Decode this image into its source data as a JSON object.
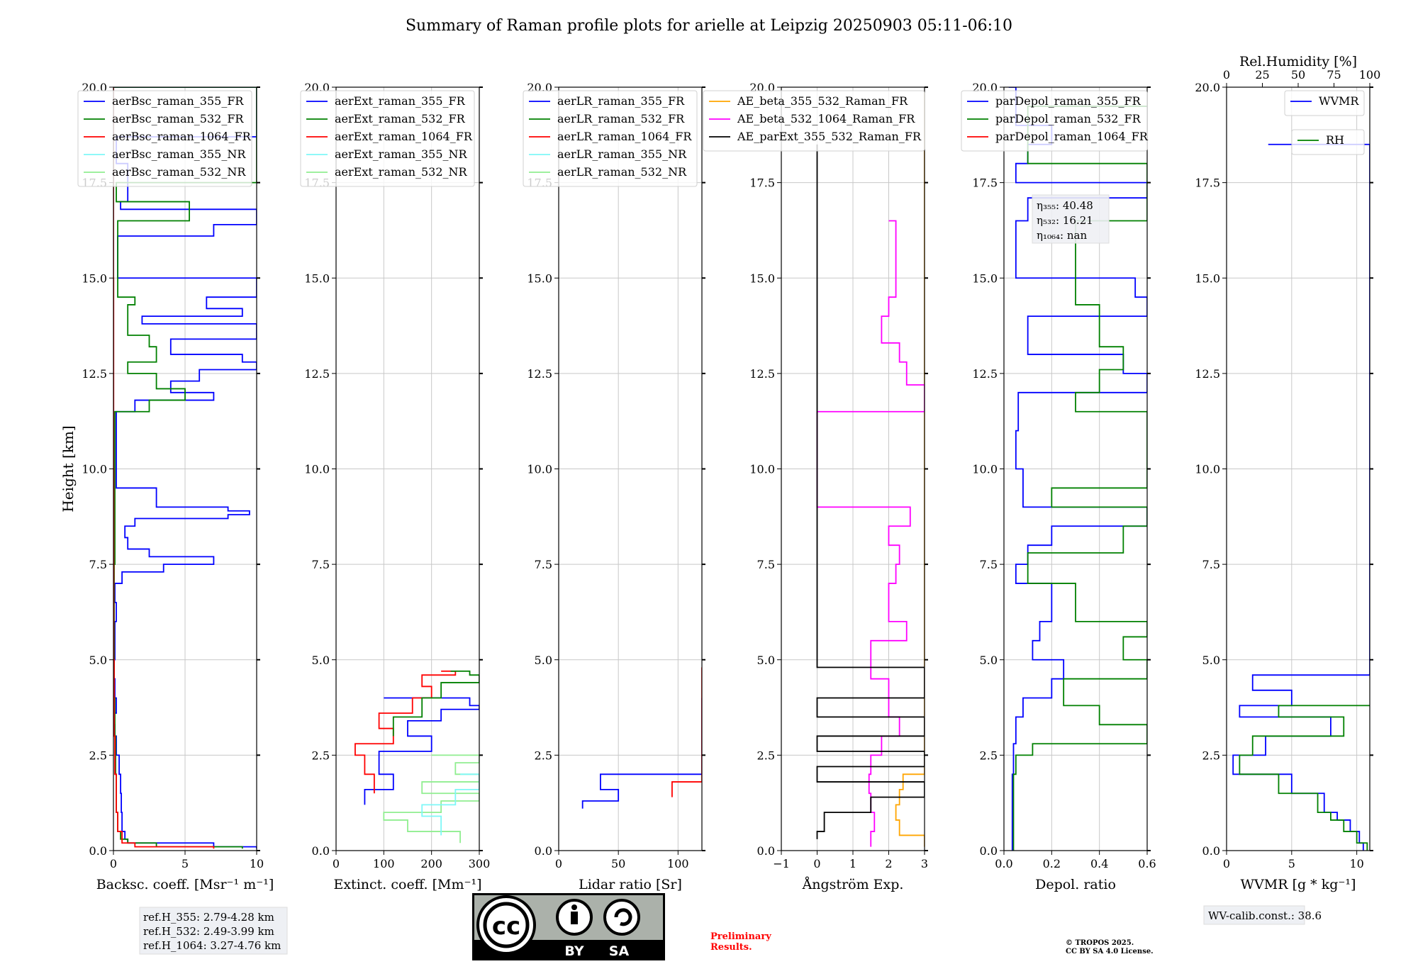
{
  "title": "Summary of Raman profile plots for arielle at Leipzig 20250903 05:11-06:10",
  "colors": {
    "blue": "#0000ff",
    "green": "#008000",
    "red": "#ff0000",
    "cyan": "#7ff7f7",
    "lightgreen": "#90ee90",
    "orange": "#ffa500",
    "magenta": "#ff00ff",
    "black": "#000000",
    "grid": "#c8c8c8",
    "prelim": "#ff0000"
  },
  "chart_data": [
    {
      "id": "bsc",
      "type": "line",
      "xlabel": "Backsc. coeff. [Msr⁻¹ m⁻¹]",
      "ylabel": "Height [km]",
      "xlim": [
        0,
        10
      ],
      "ylim": [
        0,
        20
      ],
      "xticks": [
        0,
        5,
        10
      ],
      "xtick_labels": [
        "0",
        "5",
        "10"
      ],
      "yticks": [
        0,
        2.5,
        5,
        7.5,
        10,
        12.5,
        15,
        17.5,
        20
      ],
      "ytick_labels": [
        "0.0",
        "2.5",
        "5.0",
        "7.5",
        "10.0",
        "12.5",
        "15.0",
        "17.5",
        "20.0"
      ],
      "legend": [
        "aerBsc_raman_355_FR",
        "aerBsc_raman_532_FR",
        "aerBsc_raman_1064_FR",
        "aerBsc_raman_355_NR",
        "aerBsc_raman_532_NR"
      ],
      "legend_colors": [
        "blue",
        "green",
        "red",
        "cyan",
        "lightgreen"
      ],
      "legend_loc": "upper left",
      "series": [
        {
          "color": "blue",
          "y": [
            0.05,
            0.1,
            0.2,
            0.3,
            0.5,
            1.0,
            1.5,
            2.0,
            2.5,
            3.0,
            3.3,
            3.6,
            4.0,
            4.5,
            5.0,
            6.0,
            6.5,
            7.0,
            7.3,
            7.5,
            7.7,
            7.9,
            8.2,
            8.5,
            8.7,
            8.8,
            8.9,
            9.0,
            9.5,
            11.5,
            11.8,
            12.0,
            12.3,
            12.6,
            12.8,
            13.0,
            13.4,
            13.8,
            14.0,
            14.2,
            14.5,
            15.0,
            16.1,
            16.4,
            16.8,
            17.0,
            18.0,
            18.7,
            20.0
          ],
          "x": [
            10,
            7,
            1.0,
            0.8,
            0.6,
            0.55,
            0.5,
            0.4,
            0.2,
            0.1,
            0.05,
            0.2,
            0.1,
            0.05,
            0.1,
            0.2,
            0.1,
            0.6,
            3.5,
            7.0,
            2.5,
            1.0,
            0.8,
            1.5,
            8.0,
            9.5,
            8.0,
            3.0,
            0.2,
            1.5,
            7.0,
            4.0,
            6.0,
            10,
            9,
            4.0,
            10,
            2.0,
            9.0,
            6.5,
            10,
            0.3,
            7.0,
            10,
            0.5,
            1.0,
            0.2,
            10,
            0.0
          ]
        },
        {
          "color": "green",
          "y": [
            0.05,
            0.1,
            0.2,
            0.3,
            0.5,
            1.0,
            2.0,
            3.0,
            4.0,
            5.0,
            7.5,
            8.0,
            11.5,
            11.8,
            12.1,
            12.5,
            12.8,
            13.2,
            13.5,
            14.3,
            14.5,
            16.5,
            17.0,
            17.5,
            20.0
          ],
          "x": [
            9,
            3,
            1.0,
            0.5,
            0.3,
            0.2,
            0.15,
            0.1,
            0.05,
            0.05,
            0.1,
            0.1,
            2.5,
            5.0,
            3.0,
            1.0,
            3.0,
            2.5,
            1.0,
            1.5,
            0.3,
            5.3,
            0.2,
            10,
            0.0
          ]
        },
        {
          "color": "red",
          "y": [
            0.05,
            0.1,
            0.2,
            0.5,
            1.0,
            2.0,
            3.0,
            5.0,
            10.0,
            15.0,
            20.0
          ],
          "x": [
            7,
            1.5,
            0.6,
            0.3,
            0.2,
            0.1,
            0.05,
            0.02,
            0.01,
            0.0,
            0.0
          ]
        }
      ],
      "annotation": [
        "ref.H_355: 2.79-4.28 km",
        "ref.H_532: 2.49-3.99 km",
        "ref.H_1064: 3.27-4.76 km"
      ]
    },
    {
      "id": "ext",
      "type": "line",
      "xlabel": "Extinct. coeff. [Mm⁻¹]",
      "xlim": [
        0,
        300
      ],
      "ylim": [
        0,
        20
      ],
      "xticks": [
        0,
        100,
        200,
        300
      ],
      "xtick_labels": [
        "0",
        "100",
        "200",
        "300"
      ],
      "yticks": [
        0,
        2.5,
        5,
        7.5,
        10,
        12.5,
        15,
        17.5,
        20
      ],
      "ytick_labels": [
        "0.0",
        "2.5",
        "5.0",
        "7.5",
        "10.0",
        "12.5",
        "15.0",
        "17.5",
        "20.0"
      ],
      "legend": [
        "aerExt_raman_355_FR",
        "aerExt_raman_532_FR",
        "aerExt_raman_1064_FR",
        "aerExt_raman_355_NR",
        "aerExt_raman_532_NR"
      ],
      "legend_colors": [
        "blue",
        "green",
        "red",
        "cyan",
        "lightgreen"
      ],
      "legend_loc": "upper left",
      "series": [
        {
          "color": "lightgreen",
          "y": [
            0.2,
            0.5,
            0.8,
            1.0,
            1.3,
            1.5,
            1.8,
            2.0,
            2.3,
            2.5
          ],
          "x": [
            260,
            150,
            100,
            220,
            300,
            180,
            300,
            250,
            300,
            200
          ]
        },
        {
          "color": "cyan",
          "y": [
            0.4,
            0.9,
            1.2,
            1.6,
            2.0
          ],
          "x": [
            220,
            180,
            250,
            300,
            260
          ]
        },
        {
          "color": "blue",
          "y": [
            1.2,
            1.6,
            2.0,
            2.6,
            3.0,
            3.4,
            3.7,
            3.8,
            4.0
          ],
          "x": [
            60,
            120,
            90,
            200,
            150,
            220,
            300,
            280,
            100
          ]
        },
        {
          "color": "red",
          "y": [
            1.5,
            2.0,
            2.5,
            2.8,
            3.2,
            3.6,
            4.0,
            4.3,
            4.6,
            4.7
          ],
          "x": [
            80,
            60,
            40,
            120,
            90,
            160,
            200,
            180,
            250,
            220
          ]
        },
        {
          "color": "green",
          "y": [
            3.0,
            3.5,
            4.0,
            4.4,
            4.6,
            4.7
          ],
          "x": [
            120,
            180,
            220,
            300,
            280,
            240
          ]
        }
      ]
    },
    {
      "id": "lr",
      "type": "line",
      "xlabel": "Lidar ratio [Sr]",
      "xlim": [
        0,
        120
      ],
      "ylim": [
        0,
        20
      ],
      "xticks": [
        0,
        50,
        100
      ],
      "xtick_labels": [
        "0",
        "50",
        "100"
      ],
      "yticks": [
        0,
        2.5,
        5,
        7.5,
        10,
        12.5,
        15,
        17.5,
        20
      ],
      "ytick_labels": [
        "0.0",
        "2.5",
        "5.0",
        "7.5",
        "10.0",
        "12.5",
        "15.0",
        "17.5",
        "20.0"
      ],
      "legend": [
        "aerLR_raman_355_FR",
        "aerLR_raman_532_FR",
        "aerLR_raman_1064_FR",
        "aerLR_raman_355_NR",
        "aerLR_raman_532_NR"
      ],
      "legend_colors": [
        "blue",
        "green",
        "red",
        "cyan",
        "lightgreen"
      ],
      "legend_loc": "upper left",
      "series": [
        {
          "color": "blue",
          "y": [
            1.1,
            1.3,
            1.6,
            2.0,
            2.5,
            3.0,
            3.5,
            4.0
          ],
          "x": [
            20,
            50,
            35,
            120,
            120,
            120,
            120,
            120
          ]
        },
        {
          "color": "red",
          "y": [
            1.4,
            1.8,
            2.2,
            2.6,
            3.0,
            3.4,
            3.8,
            4.2,
            4.5,
            4.8
          ],
          "x": [
            95,
            120,
            120,
            120,
            120,
            120,
            120,
            120,
            120,
            120
          ]
        }
      ]
    },
    {
      "id": "ae",
      "type": "line",
      "xlabel": "Ångström Exp.",
      "xlim": [
        -1,
        3
      ],
      "ylim": [
        0,
        20
      ],
      "xticks": [
        -1,
        0,
        1,
        2,
        3
      ],
      "xtick_labels": [
        "−1",
        "0",
        "1",
        "2",
        "3"
      ],
      "yticks": [
        0,
        2.5,
        5,
        7.5,
        10,
        12.5,
        15,
        17.5,
        20
      ],
      "ytick_labels": [
        "0.0",
        "2.5",
        "5.0",
        "7.5",
        "10.0",
        "12.5",
        "15.0",
        "17.5",
        "20.0"
      ],
      "legend": [
        "AE_beta_355_532_Raman_FR",
        "AE_beta_532_1064_Raman_FR",
        "AE_parExt_355_532_Raman_FR"
      ],
      "legend_colors": [
        "orange",
        "magenta",
        "black"
      ],
      "legend_loc": "upper center",
      "series": [
        {
          "color": "orange",
          "y": [
            0.1,
            0.4,
            0.8,
            1.2,
            1.6,
            2.0,
            2.5,
            3.0,
            3.5,
            4.0,
            4.5,
            5.0,
            5.5,
            6.0,
            6.5,
            7.0,
            7.5,
            8.0,
            8.5,
            9.0,
            11.0,
            11.8,
            12.1,
            12.5,
            12.8,
            13.5,
            14.0,
            16.8,
            19.9
          ],
          "x": [
            3,
            2.3,
            2.2,
            2.3,
            2.4,
            3.0,
            3.0,
            3.0,
            3.0,
            3.0,
            3.0,
            3.0,
            3.0,
            3.0,
            3.0,
            3.0,
            3.0,
            3.0,
            3.0,
            3.0,
            3.0,
            3.0,
            3.0,
            3.0,
            3.0,
            3.0,
            3.0,
            3.0,
            3.0
          ]
        },
        {
          "color": "magenta",
          "y": [
            0.1,
            0.5,
            1.0,
            1.5,
            2.0,
            2.5,
            3.0,
            3.5,
            4.5,
            5.5,
            6.0,
            7.0,
            7.5,
            8.0,
            8.5,
            9.0,
            11.5,
            12.2,
            12.8,
            13.3,
            14.0,
            14.5,
            16.5
          ],
          "x": [
            1.5,
            1.6,
            1.5,
            1.45,
            1.5,
            1.8,
            2.3,
            2.0,
            1.5,
            2.5,
            2.0,
            2.2,
            2.3,
            2.0,
            2.6,
            0.0,
            3.0,
            2.5,
            2.3,
            1.8,
            2.0,
            2.2,
            2.0
          ]
        },
        {
          "color": "black",
          "y": [
            0.3,
            0.5,
            1.0,
            1.4,
            1.8,
            2.2,
            2.6,
            3.0,
            3.5,
            4.0,
            4.8,
            4.9,
            5.0,
            10.0,
            15.0,
            18.5
          ],
          "x": [
            0.0,
            0.2,
            1.5,
            3.0,
            0.0,
            3.0,
            0.0,
            3.0,
            0.0,
            3.0,
            0.0,
            0.0,
            0.0,
            0.0,
            0.0,
            0.0
          ]
        }
      ]
    },
    {
      "id": "depol",
      "type": "line",
      "xlabel": "Depol. ratio",
      "xlim": [
        0,
        0.6
      ],
      "ylim": [
        0,
        20
      ],
      "xticks": [
        0,
        0.2,
        0.4,
        0.6
      ],
      "xtick_labels": [
        "0.0",
        "0.2",
        "0.4",
        "0.6"
      ],
      "yticks": [
        0,
        2.5,
        5,
        7.5,
        10,
        12.5,
        15,
        17.5,
        20
      ],
      "ytick_labels": [
        "0.0",
        "2.5",
        "5.0",
        "7.5",
        "10.0",
        "12.5",
        "15.0",
        "17.5",
        "20.0"
      ],
      "legend": [
        "parDepol_raman_355_FR",
        "parDepol_raman_532_FR",
        "parDepol_raman_1064_FR"
      ],
      "legend_colors": [
        "blue",
        "green",
        "red"
      ],
      "legend_loc": "upper left",
      "series": [
        {
          "color": "blue",
          "y": [
            0.0,
            1.0,
            2.0,
            2.8,
            3.5,
            4.0,
            4.5,
            5.0,
            5.5,
            6.0,
            7.0,
            7.5,
            8.0,
            8.5,
            9.0,
            10.0,
            11.0,
            12.0,
            12.5,
            13.0,
            14.0,
            14.5,
            15.0,
            16.5,
            17.1,
            17.5,
            18.0,
            18.5,
            19.0,
            20.0
          ],
          "x": [
            0.035,
            0.035,
            0.04,
            0.05,
            0.08,
            0.2,
            0.25,
            0.12,
            0.15,
            0.2,
            0.05,
            0.1,
            0.2,
            0.6,
            0.08,
            0.05,
            0.06,
            0.6,
            0.5,
            0.1,
            0.6,
            0.55,
            0.05,
            0.1,
            0.6,
            0.05,
            0.1,
            0.2,
            0.05,
            0.02
          ]
        },
        {
          "color": "green",
          "y": [
            0.0,
            1.0,
            2.0,
            2.5,
            2.8,
            3.3,
            3.8,
            4.5,
            5.0,
            5.6,
            6.0,
            7.0,
            7.8,
            8.5,
            9.0,
            9.5,
            10.8,
            11.5,
            12.0,
            12.6,
            13.2,
            14.3,
            16.5,
            17.5,
            18.0,
            19.5
          ],
          "x": [
            0.04,
            0.04,
            0.05,
            0.12,
            0.6,
            0.4,
            0.25,
            0.6,
            0.5,
            0.6,
            0.3,
            0.1,
            0.5,
            0.6,
            0.2,
            0.6,
            0.6,
            0.3,
            0.4,
            0.5,
            0.4,
            0.3,
            0.6,
            0.6,
            0.1,
            0.6
          ]
        }
      ],
      "annotation": [
        "η₃₅₅: 40.48",
        "η₅₃₂: 16.21",
        "η₁₀₆₄: nan"
      ]
    },
    {
      "id": "wv",
      "type": "line",
      "xlabel": "WVMR [g * kg⁻¹]",
      "xlim": [
        0,
        11
      ],
      "ylim": [
        0,
        20
      ],
      "xticks": [
        0,
        5,
        10
      ],
      "xtick_labels": [
        "0",
        "5",
        "10"
      ],
      "yticks": [
        0,
        2.5,
        5,
        7.5,
        10,
        12.5,
        15,
        17.5,
        20
      ],
      "ytick_labels": [
        "0.0",
        "2.5",
        "5.0",
        "7.5",
        "10.0",
        "12.5",
        "15.0",
        "17.5",
        "20.0"
      ],
      "x2label": "Rel.Humidity [%]",
      "x2lim": [
        0,
        100
      ],
      "x2ticks": [
        0,
        25,
        50,
        75,
        100
      ],
      "x2tick_labels": [
        "0",
        "25",
        "50",
        "75",
        "100"
      ],
      "legend": [
        "WVMR"
      ],
      "legend_colors": [
        "blue"
      ],
      "legend2": [
        "RH"
      ],
      "legend2_colors": [
        "green"
      ],
      "legend_loc": "upper right",
      "series": [
        {
          "color": "blue",
          "y": [
            0.0,
            0.2,
            0.5,
            0.8,
            1.0,
            1.5,
            2.0,
            2.5,
            3.0,
            3.5,
            3.8,
            4.2,
            4.6,
            18.5
          ],
          "x": [
            10.5,
            10.2,
            9.5,
            8.5,
            7.5,
            5.0,
            0.5,
            3.0,
            8.0,
            1.0,
            5.0,
            2.0,
            11.0,
            3.2
          ]
        },
        {
          "color": "green",
          "y": [
            0.0,
            0.2,
            0.5,
            0.8,
            1.0,
            1.5,
            2.0,
            2.5,
            3.0,
            3.5,
            3.8
          ],
          "x": [
            10.8,
            10.0,
            9.0,
            8.0,
            7.0,
            4.0,
            1.0,
            2.0,
            9.0,
            4.0,
            11.0
          ]
        }
      ],
      "annotation": [
        "WV-calib.const.: 38.6"
      ]
    }
  ],
  "license": {
    "cc": "cc",
    "by": "BY",
    "sa": "SA"
  },
  "prelim": [
    "Preliminary",
    "Results."
  ],
  "copyright": [
    "© TROPOS 2025.",
    "CC BY SA 4.0 License."
  ]
}
